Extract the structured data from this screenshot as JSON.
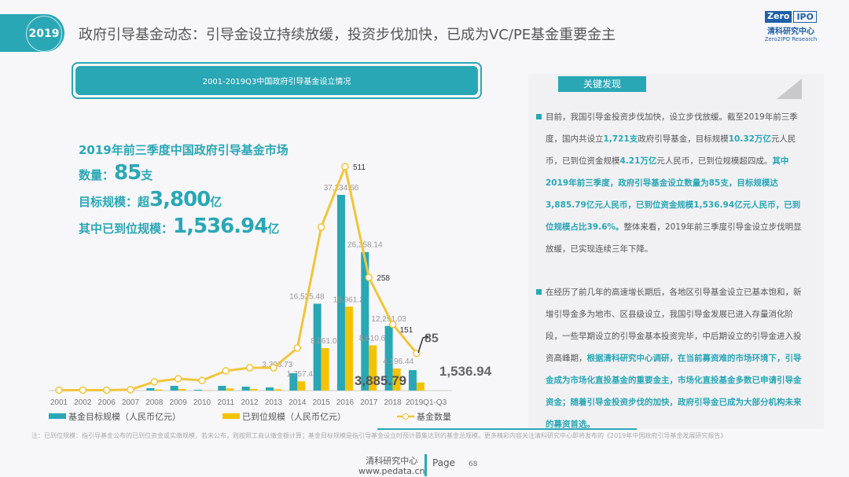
{
  "header": {
    "year": "2019",
    "title": "政府引导基金动态：引导金设立持续放缓，投资步伐加快，已成为VC/PE基金重要金主"
  },
  "logo": {
    "left": "Zero",
    "right": "IPO",
    "cn": "清科研究中心",
    "en": "Zero2IPO Research"
  },
  "chart_box_title": "2001-2019Q3中国政府引导基金设立情况",
  "summary": {
    "title": "2019年前三季度中国政府引导基金市场",
    "count_label": "数量：",
    "count_value": "85",
    "count_unit": "支",
    "target_label": "目标规模：超",
    "target_value": "3,800",
    "target_unit": "亿",
    "paid_label": "其中已到位规模：",
    "paid_value": "1,536.94",
    "paid_unit": "亿"
  },
  "panel": {
    "heading": "关键发现",
    "p1": [
      {
        "t": "目前，我国引导金投资步伐加快，设立步伐放缓。截至2019年前三季度，国内共设立"
      },
      {
        "t": "1,721支",
        "h": true
      },
      {
        "t": "政府引导基金，目标规模"
      },
      {
        "t": "10.32万亿",
        "h": true
      },
      {
        "t": "元人民币，已到位资金规模"
      },
      {
        "t": "4.21万亿",
        "h": true
      },
      {
        "t": "元人民币，已到位规模超四成。"
      },
      {
        "t": "其中2019年前三季度，政府引导基金设立数量为85支，目标规模达3,885.79亿元人民币，已到位资金规模1,536.94亿元人民币，已到位规模占比39.6%。",
        "h": true
      },
      {
        "t": "整体来看，2019年前三季度引导金设立步伐明显放缓，已实现连续三年下降。"
      }
    ],
    "p2": [
      {
        "t": "在经历了前几年的高速增长期后，各地区引导基金设立已基本饱和，新增引导金多为地市、区县级设立，我国引导金发展已进入存量消化阶段，一些早期设立的引导金基本投资完毕，中后期设立的引导金进入投资高峰期，"
      },
      {
        "t": "根据清科研究中心调研，在当前募资难的市场环境下，引导金成为市场化直投基金的重要金主，市场化直投基金多数已申请引导金资金；随着引导金投资步伐的加快，政府引导金已成为大部分机构未来的募资首选。",
        "h": true
      }
    ]
  },
  "footer": {
    "note": "注：已到位规模：指引导基金公布的已到位资金或实缴规模，若未公布，则按照工商认缴金额计算；基金目标规模是指引导基金设立时预计募集达到的基金总规模。更多精彩内容关注清科研究中心即将发布的《2019年中国政府引导基金发展研究报告》",
    "org": "清科研究中心",
    "url": "www.pedata.cn",
    "page_label": "Page",
    "page_num": "68"
  },
  "colors": {
    "teal": "#2aa7b5",
    "yellow": "#f5c200",
    "line": "#f0c53a"
  },
  "chart_data": {
    "type": "bar+line",
    "categories": [
      "2001",
      "2002",
      "2006",
      "2007",
      "2008",
      "2009",
      "2010",
      "2011",
      "2012",
      "2013",
      "2014",
      "2015",
      "2016",
      "2017",
      "2018",
      "2019Q1-Q3"
    ],
    "series": [
      {
        "name": "基金目标规模（人民币亿元）",
        "type": "bar",
        "values": [
          10,
          10,
          20,
          60,
          450,
          900,
          150,
          900,
          750,
          600,
          3308.73,
          16525.48,
          37234.66,
          26358.14,
          12291.03,
          3885.79
        ],
        "labels": [
          "",
          "",
          "",
          "",
          "",
          "",
          "",
          "",
          "",
          "",
          "3,308.73",
          "16,525.48",
          "37,234.66",
          "26,358.14",
          "12,291.03",
          "3,885.79"
        ]
      },
      {
        "name": "已到位规模（人民币亿元）",
        "type": "bar",
        "values": [
          5,
          5,
          10,
          30,
          200,
          300,
          60,
          400,
          300,
          250,
          1757.4,
          8061.03,
          15961.24,
          8610.63,
          4196.44,
          1536.94
        ],
        "labels": [
          "",
          "",
          "",
          "",
          "",
          "",
          "",
          "",
          "",
          "",
          "1,757.4",
          "8,061.03",
          "15,961.24",
          "8,610.63",
          "4,196.44",
          "1,536.94"
        ]
      },
      {
        "name": "基金数量",
        "type": "line",
        "values": [
          1,
          1,
          1,
          2,
          20,
          27,
          23,
          45,
          52,
          52,
          97,
          373,
          511,
          258,
          151,
          85
        ],
        "labels": [
          "",
          "",
          "",
          "",
          "",
          "",
          "",
          "",
          "",
          "",
          "",
          "",
          "511",
          "258",
          "151",
          "85"
        ]
      }
    ]
  }
}
